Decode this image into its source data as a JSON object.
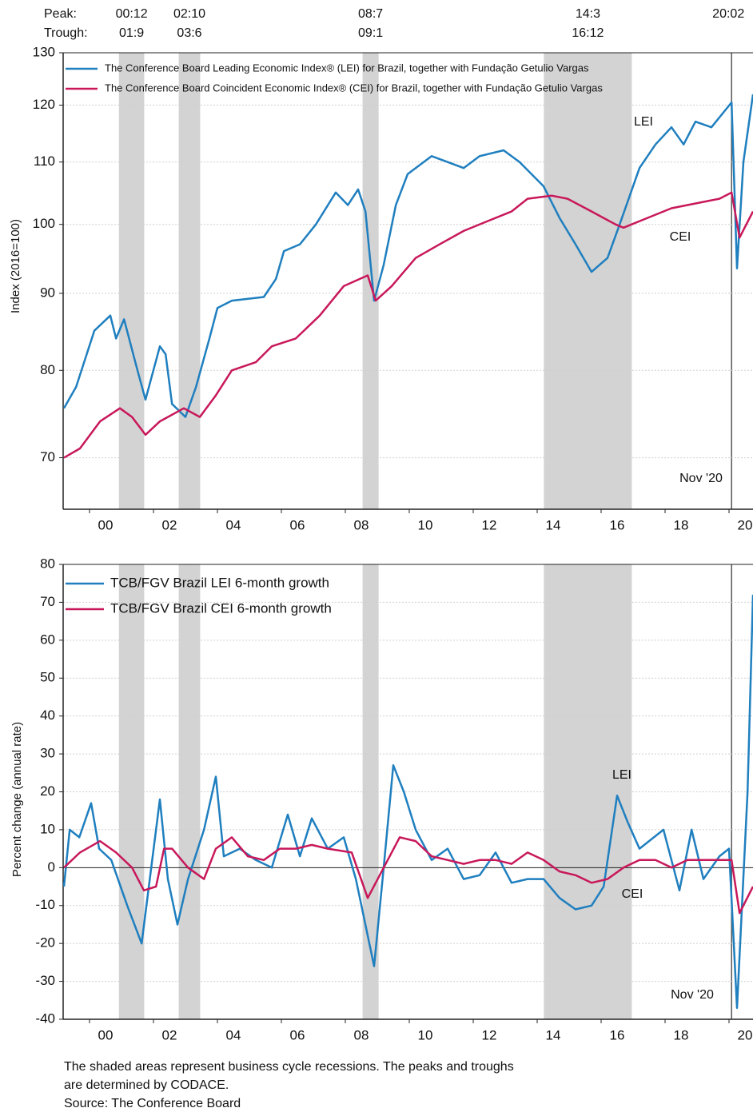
{
  "header": {
    "peak": "Peak:",
    "trough": "Trough:"
  },
  "recessions": [
    {
      "peak": "00:12",
      "trough": "01:9",
      "start": 2000.92,
      "end": 2001.71
    },
    {
      "peak": "02:10",
      "trough": "03:6",
      "start": 2002.79,
      "end": 2003.46
    },
    {
      "peak": "08:7",
      "trough": "09:1",
      "start": 2008.54,
      "end": 2009.04
    },
    {
      "peak": "14:3",
      "trough": "16:12",
      "start": 2014.21,
      "end": 2016.96
    },
    {
      "peak": "20:02",
      "start": 2020.08
    }
  ],
  "chart_data": [
    {
      "type": "line",
      "y_label": "Index (2016=100)",
      "yscale": "log",
      "grid": true,
      "xlim": [
        1999.175,
        2020.75
      ],
      "ylim": [
        64.7,
        130
      ],
      "xticks": [
        {
          "value": 2000,
          "label": "00"
        },
        {
          "value": 2002,
          "label": "02"
        },
        {
          "value": 2004,
          "label": "04"
        },
        {
          "value": 2006,
          "label": "06"
        },
        {
          "value": 2008,
          "label": "08"
        },
        {
          "value": 2010,
          "label": "10"
        },
        {
          "value": 2012,
          "label": "12"
        },
        {
          "value": 2014,
          "label": "14"
        },
        {
          "value": 2016,
          "label": "16"
        },
        {
          "value": 2018,
          "label": "18"
        },
        {
          "value": 2020,
          "label": "20"
        }
      ],
      "yticks": [
        70,
        80,
        90,
        100,
        110,
        120,
        130
      ],
      "annotations": [
        "LEI",
        "CEI",
        "Nov '20"
      ],
      "series": [
        {
          "name": "The Conference Board Leading Economic Index® (LEI) for Brazil, together with Fundação Getulio Vargas",
          "color": "#1f7fbf",
          "x": [
            1999.2,
            1999.58,
            2000.15,
            2000.65,
            2000.83,
            2001.08,
            2001.5,
            2001.75,
            2002.2,
            2002.38,
            2002.58,
            2003.0,
            2003.33,
            2003.75,
            2004.0,
            2004.45,
            2005.45,
            2005.83,
            2006.08,
            2006.58,
            2007.08,
            2007.7,
            2008.08,
            2008.4,
            2008.63,
            2008.9,
            2009.2,
            2009.58,
            2009.95,
            2010.7,
            2011.2,
            2011.7,
            2012.2,
            2012.95,
            2013.45,
            2014.2,
            2014.7,
            2015.2,
            2015.7,
            2016.2,
            2016.58,
            2017.2,
            2017.7,
            2018.2,
            2018.58,
            2018.95,
            2019.45,
            2020.08,
            2020.25,
            2020.45,
            2020.75
          ],
          "values": [
            75.5,
            78,
            85,
            87,
            84,
            86.5,
            80,
            76.5,
            83,
            82,
            76,
            74.5,
            78,
            84,
            88,
            89,
            89.5,
            92,
            96,
            97,
            100,
            105,
            103,
            105.5,
            102,
            89,
            94,
            103,
            108,
            111,
            110,
            109,
            111,
            112,
            110,
            106,
            101,
            97,
            93,
            95,
            100,
            109,
            113,
            116,
            113,
            117,
            116,
            120.5,
            93.5,
            110,
            122
          ]
        },
        {
          "name": "The Conference Board Coincident Economic Index® (CEI) for Brazil, together with Fundação Getulio Vargas",
          "color": "#c8185a",
          "x": [
            1999.2,
            1999.7,
            2000.33,
            2000.95,
            2001.33,
            2001.75,
            2002.2,
            2002.95,
            2003.45,
            2003.95,
            2004.45,
            2005.2,
            2005.7,
            2006.45,
            2007.2,
            2007.95,
            2008.7,
            2008.95,
            2009.45,
            2010.2,
            2010.95,
            2011.7,
            2012.45,
            2013.2,
            2013.7,
            2014.45,
            2014.95,
            2015.7,
            2016.45,
            2016.7,
            2017.45,
            2018.2,
            2018.7,
            2019.7,
            2020.08,
            2020.33,
            2020.75
          ],
          "values": [
            70,
            71,
            74,
            75.5,
            74.5,
            72.5,
            74,
            75.5,
            74.5,
            77,
            80,
            81,
            83,
            84,
            87,
            91,
            92.5,
            89,
            91,
            95,
            97,
            99,
            100.5,
            102,
            104,
            104.5,
            104,
            102,
            100,
            99.5,
            101,
            102.5,
            103,
            104,
            105,
            98,
            102
          ]
        }
      ]
    },
    {
      "type": "line",
      "y_label": "Percent change (annual rate)",
      "grid": true,
      "xlim": [
        1999.175,
        2020.75
      ],
      "ylim": [
        -40,
        80
      ],
      "xticks": [
        {
          "value": 2000,
          "label": "00"
        },
        {
          "value": 2002,
          "label": "02"
        },
        {
          "value": 2004,
          "label": "04"
        },
        {
          "value": 2006,
          "label": "06"
        },
        {
          "value": 2008,
          "label": "08"
        },
        {
          "value": 2010,
          "label": "10"
        },
        {
          "value": 2012,
          "label": "12"
        },
        {
          "value": 2014,
          "label": "14"
        },
        {
          "value": 2016,
          "label": "16"
        },
        {
          "value": 2018,
          "label": "18"
        },
        {
          "value": 2020,
          "label": "20"
        }
      ],
      "yticks": [
        -40,
        -30,
        -20,
        -10,
        0,
        10,
        20,
        30,
        40,
        50,
        60,
        70,
        80
      ],
      "annotations": [
        "LEI",
        "CEI",
        "Nov '20"
      ],
      "series": [
        {
          "name": "TCB/FGV Brazil LEI 6-month growth",
          "color": "#1f7fbf",
          "x": [
            1999.2,
            1999.38,
            1999.68,
            2000.05,
            2000.3,
            2000.68,
            2001.18,
            2001.63,
            2001.93,
            2002.2,
            2002.45,
            2002.75,
            2003.08,
            2003.58,
            2003.95,
            2004.2,
            2004.7,
            2005.2,
            2005.7,
            2006.2,
            2006.58,
            2006.95,
            2007.45,
            2007.95,
            2008.33,
            2008.9,
            2009.2,
            2009.5,
            2009.83,
            2010.2,
            2010.7,
            2011.2,
            2011.7,
            2012.2,
            2012.7,
            2013.2,
            2013.7,
            2014.2,
            2014.7,
            2015.2,
            2015.7,
            2016.08,
            2016.5,
            2016.83,
            2017.2,
            2017.95,
            2018.45,
            2018.83,
            2019.2,
            2019.7,
            2020.0,
            2020.25,
            2020.58,
            2020.75
          ],
          "values": [
            -5,
            10,
            8,
            17,
            5,
            2,
            -10,
            -20,
            0,
            18,
            -3,
            -15,
            -3,
            10,
            24,
            3,
            5,
            2,
            0,
            14,
            3,
            13,
            5,
            8,
            -3,
            -26,
            0,
            27,
            20,
            10,
            2,
            5,
            -3,
            -2,
            4,
            -4,
            -3,
            -3,
            -8,
            -11,
            -10,
            -5,
            19,
            12,
            5,
            10,
            -6,
            10,
            -3,
            3,
            5,
            -37,
            20,
            72
          ]
        },
        {
          "name": "TCB/FGV Brazil CEI 6-month growth",
          "color": "#c8185a",
          "x": [
            1999.2,
            1999.7,
            2000.33,
            2000.83,
            2001.33,
            2001.7,
            2002.08,
            2002.33,
            2002.58,
            2003.08,
            2003.58,
            2003.95,
            2004.45,
            2004.95,
            2005.45,
            2005.95,
            2006.45,
            2006.95,
            2007.45,
            2008.2,
            2008.7,
            2009.2,
            2009.7,
            2010.2,
            2010.7,
            2011.2,
            2011.7,
            2012.2,
            2012.7,
            2013.2,
            2013.7,
            2014.2,
            2014.7,
            2015.2,
            2015.7,
            2016.2,
            2016.7,
            2017.2,
            2017.7,
            2018.2,
            2018.7,
            2019.7,
            2020.08,
            2020.33,
            2020.75
          ],
          "values": [
            0,
            4,
            7,
            4,
            0,
            -6,
            -5,
            5,
            5,
            0,
            -3,
            5,
            8,
            3,
            2,
            5,
            5,
            6,
            5,
            4,
            -8,
            0,
            8,
            7,
            3,
            2,
            1,
            2,
            2,
            1,
            4,
            2,
            -1,
            -2,
            -4,
            -3,
            0,
            2,
            2,
            0,
            2,
            2,
            2,
            -12,
            -5
          ]
        }
      ]
    }
  ],
  "footnote": [
    "The shaded areas represent business cycle recessions. The peaks and troughs",
    "are determined by CODACE.",
    "Source: The Conference Board"
  ]
}
